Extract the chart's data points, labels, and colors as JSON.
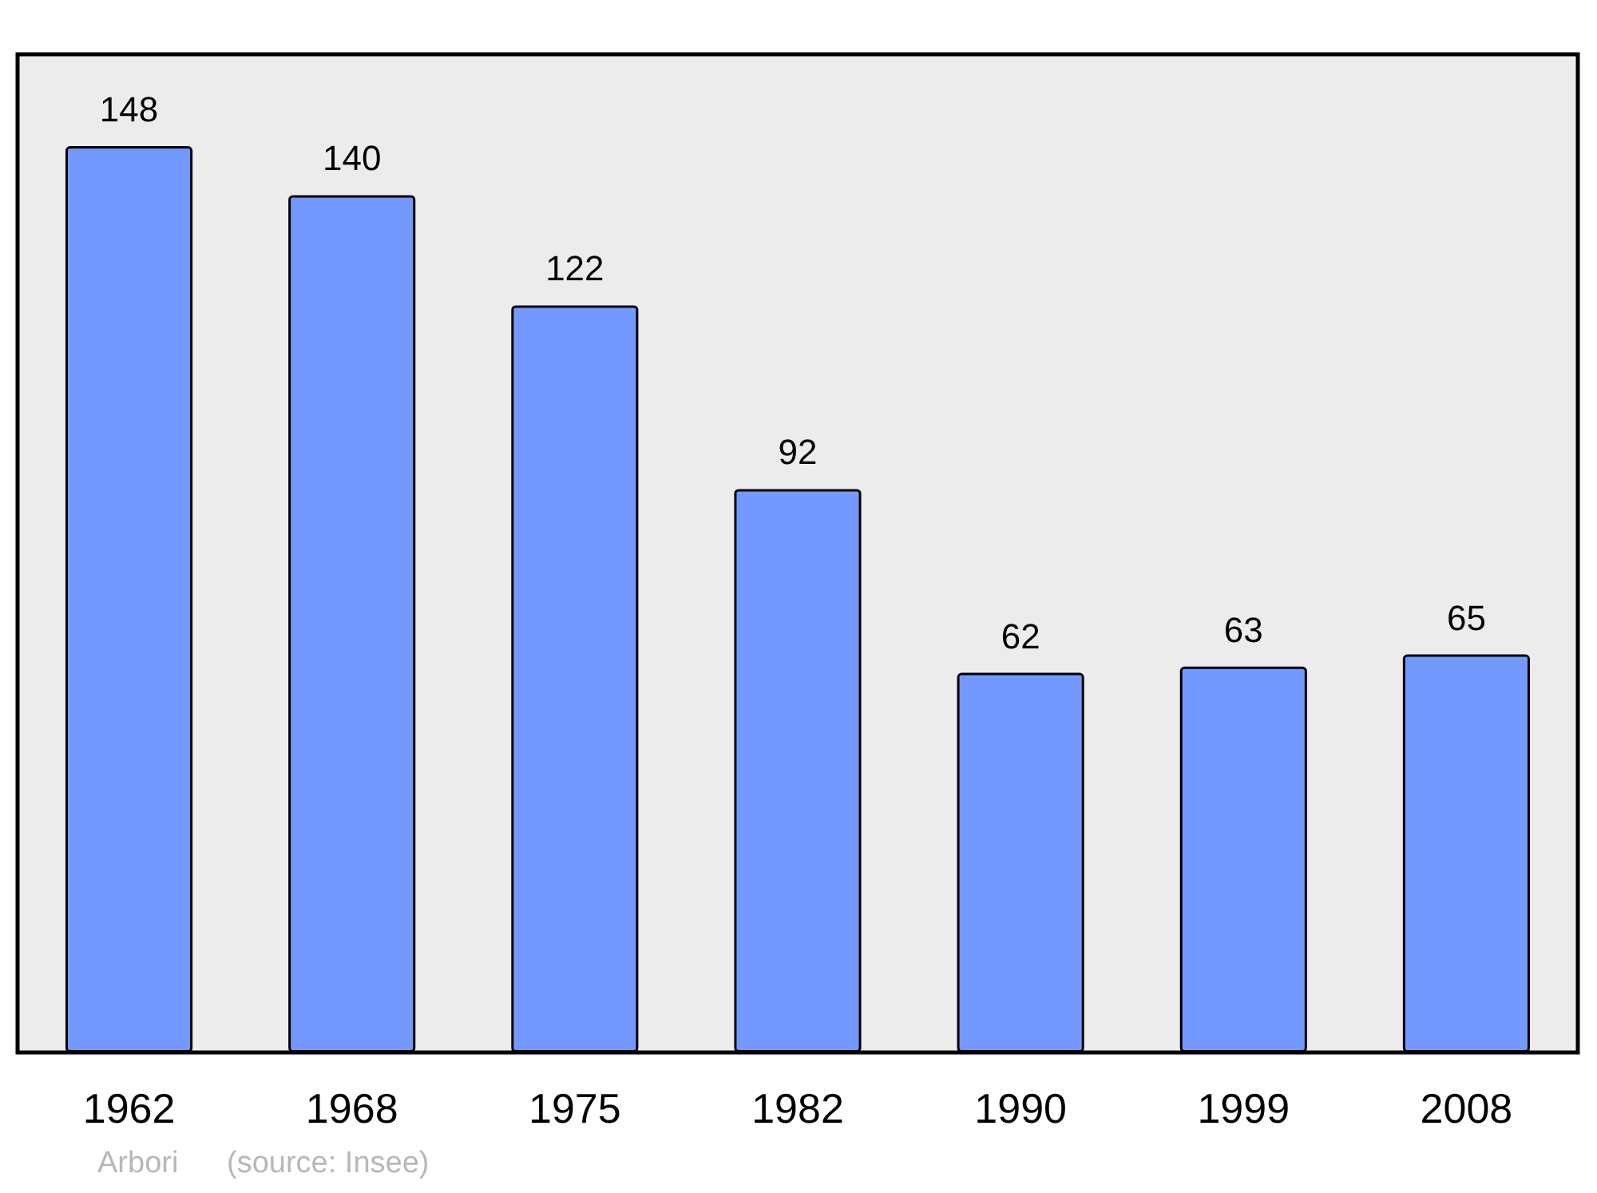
{
  "chart_data": {
    "type": "bar",
    "categories": [
      "1962",
      "1968",
      "1975",
      "1982",
      "1990",
      "1999",
      "2008"
    ],
    "values": [
      148,
      140,
      122,
      92,
      62,
      63,
      65
    ],
    "color": "#7399ff",
    "ylim": [
      0,
      163
    ],
    "data_labels": true,
    "annotations": [
      "Arbori",
      "(source: Insee)"
    ]
  }
}
